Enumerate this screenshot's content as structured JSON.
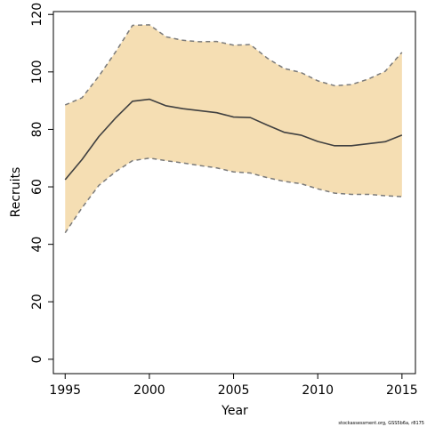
{
  "chart_data": {
    "type": "line",
    "title": "",
    "xlabel": "Year",
    "ylabel": "Recruits",
    "xlim": [
      1994.3,
      2015.8
    ],
    "ylim": [
      -5,
      121
    ],
    "x_ticks": [
      1995,
      2000,
      2005,
      2010,
      2015
    ],
    "y_ticks": [
      0,
      20,
      40,
      60,
      80,
      100,
      120
    ],
    "grid": false,
    "legend": "none",
    "x": [
      1995,
      1996,
      1997,
      1998,
      1999,
      2000,
      2001,
      2002,
      2003,
      2004,
      2005,
      2006,
      2007,
      2008,
      2009,
      2010,
      2011,
      2012,
      2013,
      2014,
      2015
    ],
    "series": [
      {
        "role": "estimate",
        "style": "solid",
        "values": [
          62.5,
          69.5,
          77.5,
          84,
          89.8,
          90.5,
          88.2,
          87.2,
          86.5,
          85.8,
          84.3,
          84.1,
          81.5,
          79,
          78,
          75.8,
          74.3,
          74.3,
          75,
          75.7,
          78
        ]
      },
      {
        "role": "upper-interval",
        "style": "dashed",
        "values": [
          88.5,
          91,
          98.5,
          107,
          116.2,
          116.4,
          112.2,
          111,
          110.5,
          110.6,
          109.3,
          109.5,
          104.8,
          101.2,
          99.8,
          96.9,
          95.2,
          95.6,
          97.5,
          100.2,
          106.8
        ]
      },
      {
        "role": "lower-interval",
        "style": "dashed",
        "values": [
          44,
          52.7,
          60.5,
          65.3,
          69.1,
          70,
          69.1,
          68.3,
          67.4,
          66.6,
          65.2,
          64.8,
          63.2,
          61.9,
          61.1,
          59.3,
          57.8,
          57.4,
          57.4,
          56.9,
          56.6
        ]
      }
    ],
    "colors": {
      "band": "#f5deb3",
      "estimate": "#404040",
      "interval": "#7a7a7a",
      "frame": "#000000"
    }
  },
  "footnote": "stockassessment.org, GSS5b6a, r8175"
}
